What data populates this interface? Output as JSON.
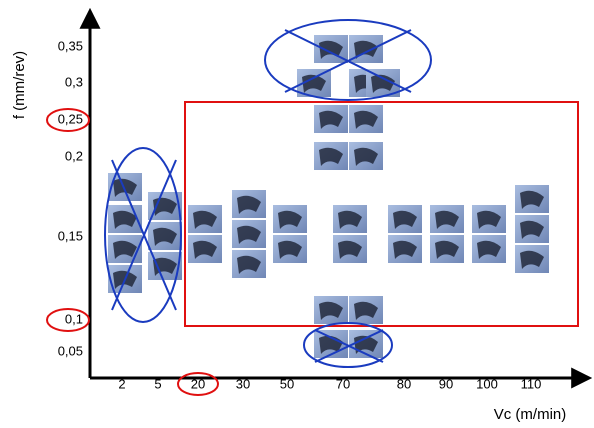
{
  "y_axis": {
    "label": "f (mm/rev)",
    "ticks": [
      "0,35",
      "0,3",
      "0,25",
      "0,2",
      "0,15",
      "0,1",
      "0,05"
    ]
  },
  "x_axis": {
    "label": "Vc (m/min)",
    "ticks": [
      "2",
      "5",
      "20",
      "30",
      "50",
      "70",
      "80",
      "90",
      "100",
      "110"
    ]
  }
}
